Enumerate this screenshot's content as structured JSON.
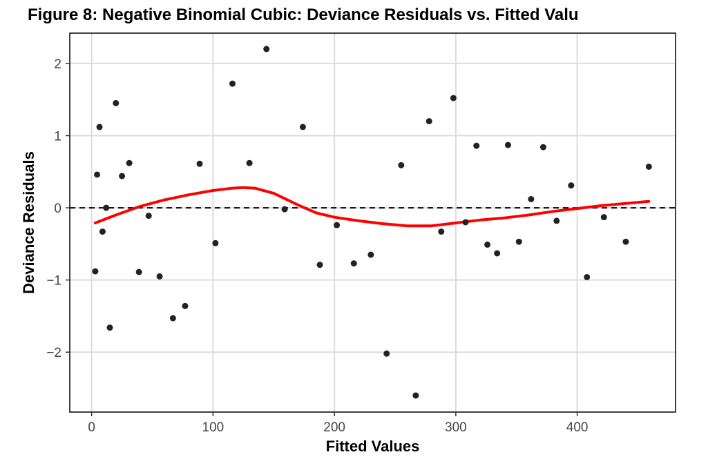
{
  "chart_data": {
    "type": "scatter",
    "title": "Figure 8: Negative Binomial Cubic: Deviance Residuals vs. Fitted Valu",
    "xlabel": "Fitted Values",
    "ylabel": "Deviance Residuals",
    "xlim": [
      -18,
      481
    ],
    "ylim": [
      -2.83,
      2.42
    ],
    "xticks": [
      0,
      100,
      200,
      300,
      400
    ],
    "xtick_labels": [
      "0",
      "100",
      "200",
      "300",
      "400"
    ],
    "yticks": [
      -2,
      -1,
      0,
      1,
      2
    ],
    "ytick_labels": [
      "−2",
      "−1",
      "0",
      "1",
      "2"
    ],
    "grid": true,
    "reference_line": {
      "y": 0,
      "style": "dashed",
      "color": "#000000"
    },
    "point_color": "#222222",
    "smooth_color": "#ff0000",
    "points": [
      {
        "x": 3,
        "y": -0.88
      },
      {
        "x": 4.5,
        "y": 0.46
      },
      {
        "x": 6.5,
        "y": 1.12
      },
      {
        "x": 9,
        "y": -0.33
      },
      {
        "x": 12,
        "y": 0.0
      },
      {
        "x": 15,
        "y": -1.66
      },
      {
        "x": 20,
        "y": 1.45
      },
      {
        "x": 25,
        "y": 0.44
      },
      {
        "x": 31,
        "y": 0.62
      },
      {
        "x": 39,
        "y": -0.89
      },
      {
        "x": 47,
        "y": -0.11
      },
      {
        "x": 56,
        "y": -0.95
      },
      {
        "x": 67,
        "y": -1.53
      },
      {
        "x": 77,
        "y": -1.36
      },
      {
        "x": 89,
        "y": 0.61
      },
      {
        "x": 102,
        "y": -0.49
      },
      {
        "x": 116,
        "y": 1.72
      },
      {
        "x": 130,
        "y": 0.62
      },
      {
        "x": 144,
        "y": 2.2
      },
      {
        "x": 159,
        "y": -0.02
      },
      {
        "x": 174,
        "y": 1.12
      },
      {
        "x": 188,
        "y": -0.79
      },
      {
        "x": 202,
        "y": -0.24
      },
      {
        "x": 216,
        "y": -0.77
      },
      {
        "x": 230,
        "y": -0.65
      },
      {
        "x": 243,
        "y": -2.02
      },
      {
        "x": 255,
        "y": 0.59
      },
      {
        "x": 267,
        "y": -2.6
      },
      {
        "x": 278,
        "y": 1.2
      },
      {
        "x": 288,
        "y": -0.33
      },
      {
        "x": 298,
        "y": 1.52
      },
      {
        "x": 308,
        "y": -0.2
      },
      {
        "x": 317,
        "y": 0.86
      },
      {
        "x": 326,
        "y": -0.51
      },
      {
        "x": 334,
        "y": -0.63
      },
      {
        "x": 343,
        "y": 0.87
      },
      {
        "x": 352,
        "y": -0.47
      },
      {
        "x": 362,
        "y": 0.12
      },
      {
        "x": 372,
        "y": 0.84
      },
      {
        "x": 383,
        "y": -0.18
      },
      {
        "x": 395,
        "y": 0.31
      },
      {
        "x": 408,
        "y": -0.96
      },
      {
        "x": 422,
        "y": -0.13
      },
      {
        "x": 440,
        "y": -0.47
      },
      {
        "x": 459,
        "y": 0.57
      }
    ],
    "smooth": {
      "x": [
        3,
        20,
        40,
        60,
        80,
        100,
        115,
        125,
        135,
        150,
        170,
        185,
        200,
        220,
        240,
        260,
        280,
        300,
        320,
        340,
        360,
        380,
        400,
        420,
        440,
        459
      ],
      "y": [
        -0.21,
        -0.1,
        0.02,
        0.11,
        0.18,
        0.24,
        0.27,
        0.28,
        0.27,
        0.2,
        0.04,
        -0.07,
        -0.13,
        -0.18,
        -0.22,
        -0.25,
        -0.25,
        -0.21,
        -0.17,
        -0.14,
        -0.1,
        -0.05,
        -0.01,
        0.03,
        0.06,
        0.09
      ]
    }
  }
}
